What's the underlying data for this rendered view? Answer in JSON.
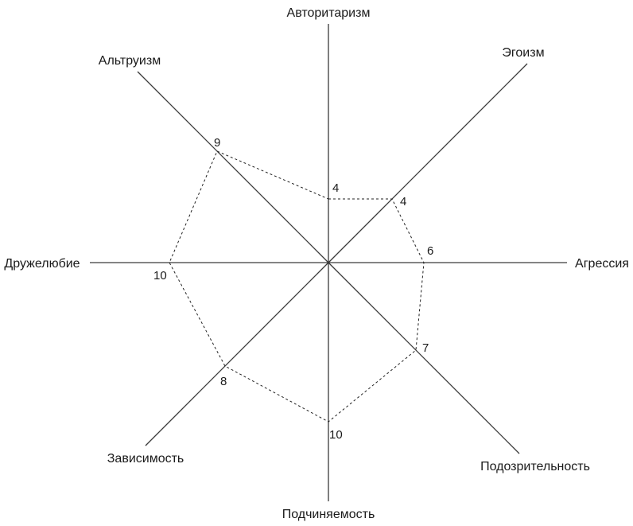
{
  "chart_data": {
    "type": "radar",
    "axes": [
      {
        "label": "Авторитаризм",
        "value": 4
      },
      {
        "label": "Эгоизм",
        "value": 4
      },
      {
        "label": "Агрессия",
        "value": 6
      },
      {
        "label": "Подозрительность",
        "value": 7
      },
      {
        "label": "Подчиняемость",
        "value": 10
      },
      {
        "label": "Зависимость",
        "value": 8
      },
      {
        "label": "Дружелюбие",
        "value": 10
      },
      {
        "label": "Альтруизм",
        "value": 9
      }
    ]
  }
}
